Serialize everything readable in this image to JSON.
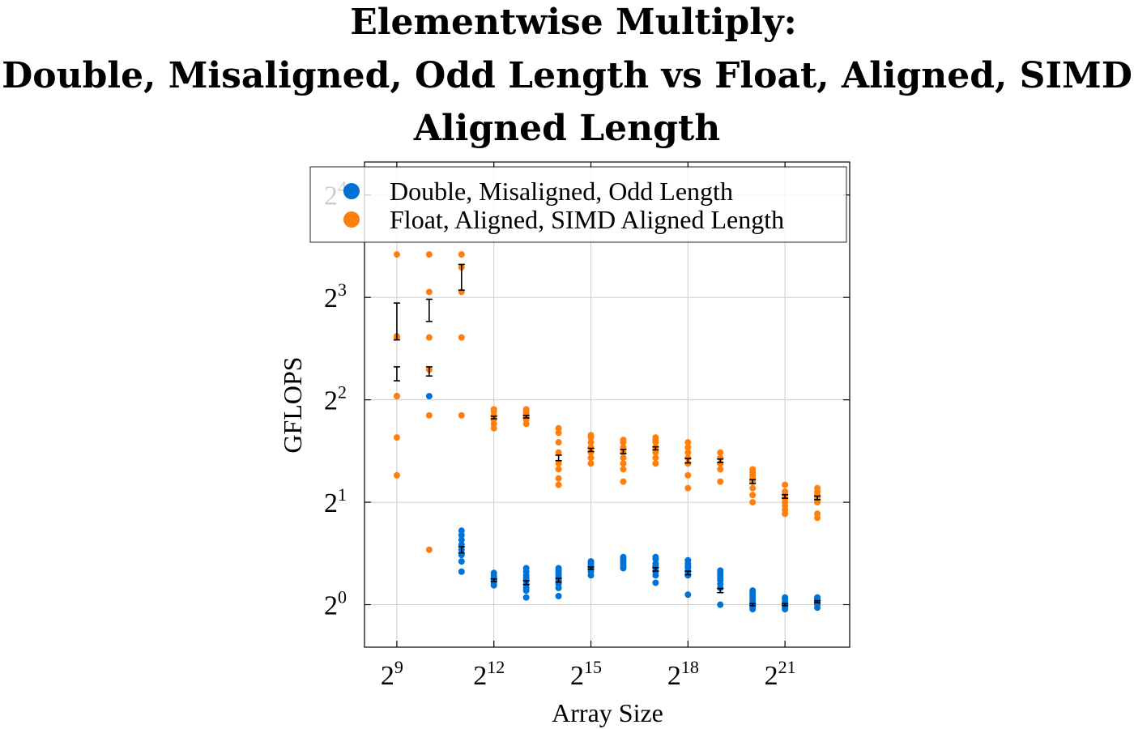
{
  "chart_data": {
    "type": "scatter",
    "title_lines": [
      "Elementwise Multiply:",
      "Double, Misaligned, Odd Length vs Float, Aligned, SIMD",
      "Aligned Length"
    ],
    "xlabel": "Array Size",
    "ylabel": "GFLOPS",
    "x_scale": "log2",
    "y_scale": "log2",
    "xlim": [
      256,
      8388608
    ],
    "ylim": [
      0.75,
      20
    ],
    "x_ticks": [
      {
        "base": "2",
        "exp": "9"
      },
      {
        "base": "2",
        "exp": "12"
      },
      {
        "base": "2",
        "exp": "15"
      },
      {
        "base": "2",
        "exp": "18"
      },
      {
        "base": "2",
        "exp": "21"
      }
    ],
    "x_tick_values": [
      512,
      4096,
      32768,
      262144,
      2097152
    ],
    "y_ticks": [
      {
        "base": "2",
        "exp": "0"
      },
      {
        "base": "2",
        "exp": "1"
      },
      {
        "base": "2",
        "exp": "2"
      },
      {
        "base": "2",
        "exp": "3"
      },
      {
        "base": "2",
        "exp": "4"
      }
    ],
    "y_tick_values": [
      1,
      2,
      4,
      8,
      16
    ],
    "grid": true,
    "legend_position": "top-right",
    "x": [
      512,
      1024,
      2048,
      4096,
      8192,
      16384,
      32768,
      65536,
      131072,
      262144,
      524288,
      1048576,
      2097152,
      4194304
    ],
    "series": [
      {
        "name": "Double, Misaligned, Odd Length",
        "color": "#0072d6",
        "points": [
          [
            4.1
          ],
          [
            4.1
          ],
          [
            1.25,
            1.34,
            1.4,
            1.45,
            1.5,
            1.55,
            1.6,
            1.65
          ],
          [
            1.14,
            1.16,
            1.18,
            1.2,
            1.22,
            1.24
          ],
          [
            1.05,
            1.1,
            1.12,
            1.15,
            1.18,
            1.2,
            1.22,
            1.25,
            1.28
          ],
          [
            1.06,
            1.12,
            1.15,
            1.18,
            1.2,
            1.22,
            1.24,
            1.26,
            1.28
          ],
          [
            1.22,
            1.25,
            1.28,
            1.3,
            1.32,
            1.34
          ],
          [
            1.28,
            1.3,
            1.32,
            1.34,
            1.36,
            1.38
          ],
          [
            1.16,
            1.22,
            1.25,
            1.28,
            1.3,
            1.32,
            1.36,
            1.38
          ],
          [
            1.07,
            1.22,
            1.25,
            1.28,
            1.3,
            1.32,
            1.35
          ],
          [
            1.0,
            1.12,
            1.15,
            1.18,
            1.2,
            1.22,
            1.24,
            1.26
          ],
          [
            0.97,
            0.98,
            1.0,
            1.02,
            1.04,
            1.06,
            1.08,
            1.1
          ],
          [
            0.97,
            0.98,
            1.0,
            1.01,
            1.02,
            1.04,
            1.05
          ],
          [
            0.98,
            1.0,
            1.01,
            1.02,
            1.03,
            1.04,
            1.05
          ]
        ],
        "means": [
          null,
          null,
          1.45,
          1.18,
          1.16,
          1.18,
          1.28,
          null,
          1.27,
          1.24,
          1.1,
          1.0,
          1.0,
          1.02
        ],
        "errors": [
          null,
          null,
          0.03,
          0.01,
          0.015,
          0.015,
          0.01,
          null,
          0.015,
          0.015,
          0.015,
          0.007,
          0.007,
          0.007
        ]
      },
      {
        "name": "Float, Aligned, SIMD Aligned Length",
        "color": "#ff7f0e",
        "points": [
          [
            2.4,
            3.1,
            4.1,
            6.1,
            6.15,
            10.7
          ],
          [
            1.45,
            3.6,
            4.9,
            6.1,
            8.3,
            10.7
          ],
          [
            3.6,
            6.1,
            8.3,
            9.8,
            10.7
          ],
          [
            3.3,
            3.4,
            3.5,
            3.6,
            3.7,
            3.75
          ],
          [
            3.4,
            3.5,
            3.6,
            3.65,
            3.7,
            3.75
          ],
          [
            2.25,
            2.35,
            2.5,
            2.6,
            2.8,
            3.0,
            3.2,
            3.3
          ],
          [
            2.6,
            2.7,
            2.8,
            2.9,
            3.0,
            3.1,
            3.15
          ],
          [
            2.3,
            2.5,
            2.6,
            2.7,
            2.8,
            2.9,
            3.0,
            3.05
          ],
          [
            2.6,
            2.7,
            2.8,
            2.9,
            3.0,
            3.05,
            3.1
          ],
          [
            2.2,
            2.4,
            2.6,
            2.7,
            2.8,
            2.9,
            3.0
          ],
          [
            2.3,
            2.5,
            2.6,
            2.7,
            2.8
          ],
          [
            2.0,
            2.1,
            2.2,
            2.3,
            2.35,
            2.4,
            2.45,
            2.5
          ],
          [
            1.85,
            1.9,
            1.95,
            2.0,
            2.05,
            2.1,
            2.15,
            2.25
          ],
          [
            1.8,
            1.85,
            2.0,
            2.05,
            2.1,
            2.15,
            2.2
          ]
        ],
        "means": [
          null,
          null,
          null,
          3.55,
          3.57,
          2.7,
          2.85,
          2.82,
          2.88,
          2.65,
          2.65,
          2.3,
          2.08,
          2.06
        ],
        "errors": [
          null,
          null,
          null,
          0.03,
          0.03,
          0.05,
          0.03,
          0.04,
          0.03,
          0.04,
          0.03,
          0.03,
          0.025,
          0.025
        ]
      }
    ],
    "combined_error_bars": [
      {
        "x": 512,
        "low": 6.0,
        "high": 7.7
      },
      {
        "x": 512,
        "low": 4.55,
        "high": 5.0
      },
      {
        "x": 1024,
        "low": 6.8,
        "high": 7.9
      },
      {
        "x": 1024,
        "low": 4.7,
        "high": 5.0
      },
      {
        "x": 2048,
        "low": 8.4,
        "high": 10.0
      }
    ]
  }
}
